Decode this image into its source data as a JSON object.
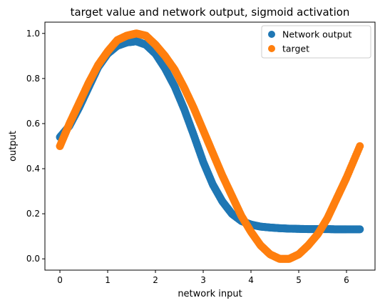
{
  "chart_data": {
    "type": "scatter",
    "title": "target value and network output, sigmoid activation",
    "xlabel": "network input",
    "ylabel": "output",
    "xlim": [
      -0.314,
      6.597
    ],
    "ylim": [
      -0.05,
      1.05
    ],
    "x_ticks": [
      0,
      1,
      2,
      3,
      4,
      5,
      6
    ],
    "x_tick_labels": [
      "0",
      "1",
      "2",
      "3",
      "4",
      "5",
      "6"
    ],
    "y_ticks": [
      0.0,
      0.2,
      0.4,
      0.6,
      0.8,
      1.0
    ],
    "y_tick_labels": [
      "0.0",
      "0.2",
      "0.4",
      "0.6",
      "0.8",
      "1.0"
    ],
    "grid": false,
    "legend_position": "top-right",
    "series": [
      {
        "name": "Network output",
        "color": "#1f77b4",
        "x": [
          0.0,
          0.2,
          0.4,
          0.6,
          0.8,
          1.0,
          1.2,
          1.4,
          1.6,
          1.8,
          2.0,
          2.2,
          2.4,
          2.6,
          2.8,
          3.0,
          3.2,
          3.4,
          3.6,
          3.8,
          4.0,
          4.2,
          4.4,
          4.6,
          4.8,
          5.0,
          5.2,
          5.4,
          5.6,
          5.8,
          6.0,
          6.28
        ],
        "y": [
          0.54,
          0.59,
          0.67,
          0.76,
          0.85,
          0.91,
          0.945,
          0.96,
          0.965,
          0.95,
          0.91,
          0.845,
          0.765,
          0.665,
          0.55,
          0.43,
          0.33,
          0.255,
          0.2,
          0.168,
          0.152,
          0.143,
          0.139,
          0.136,
          0.134,
          0.133,
          0.132,
          0.132,
          0.132,
          0.131,
          0.131,
          0.131
        ]
      },
      {
        "name": "target",
        "color": "#ff7f0e",
        "x": [
          0.0,
          0.2,
          0.4,
          0.6,
          0.8,
          1.0,
          1.2,
          1.4,
          1.6,
          1.8,
          2.0,
          2.2,
          2.4,
          2.6,
          2.8,
          3.0,
          3.2,
          3.4,
          3.6,
          3.8,
          4.0,
          4.2,
          4.4,
          4.6,
          4.8,
          5.0,
          5.2,
          5.4,
          5.6,
          5.8,
          6.0,
          6.28
        ],
        "y": [
          0.5,
          0.6,
          0.69,
          0.78,
          0.86,
          0.92,
          0.97,
          0.99,
          1.0,
          0.99,
          0.95,
          0.9,
          0.84,
          0.76,
          0.67,
          0.57,
          0.47,
          0.37,
          0.28,
          0.19,
          0.12,
          0.06,
          0.02,
          0.0,
          0.0,
          0.02,
          0.06,
          0.11,
          0.18,
          0.27,
          0.36,
          0.5
        ]
      }
    ]
  }
}
